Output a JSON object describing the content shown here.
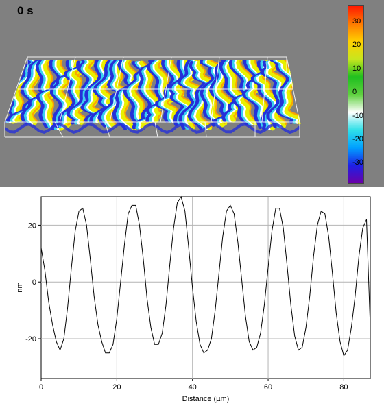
{
  "viewer": {
    "time_label": "0 s",
    "colorbar": {
      "ticks": [
        "30",
        "20",
        "10",
        "0",
        "-10",
        "-20",
        "-30"
      ],
      "range": [
        -38,
        37
      ],
      "stops": [
        "#6a00a8",
        "#1e20e6",
        "#00a0ff",
        "#2fe0e8",
        "#ffffff",
        "#5fd13f",
        "#1fbf1f",
        "#c8e61e",
        "#ffd000",
        "#ff7a00",
        "#ff1a00"
      ]
    },
    "surface_colors": [
      "#e8f000",
      "#2ec82e",
      "#ff9a00",
      "#ffffff",
      "#3ad0f0",
      "#2530d8"
    ]
  },
  "chart_data": {
    "type": "line",
    "xlabel": "Distance (µm)",
    "ylabel": "nm",
    "xlim": [
      0,
      87
    ],
    "ylim": [
      -34,
      30
    ],
    "xticks": [
      0,
      20,
      40,
      60,
      80
    ],
    "yticks": [
      20,
      0,
      -20
    ],
    "grid": true,
    "series": [
      {
        "x": [
          0,
          1,
          2,
          3,
          4,
          5,
          6,
          7,
          8,
          9,
          10,
          11,
          12,
          13,
          14,
          15,
          16,
          17,
          18,
          19,
          20,
          21,
          22,
          23,
          24,
          25,
          26,
          27,
          28,
          29,
          30,
          31,
          32,
          33,
          34,
          35,
          36,
          37,
          38,
          39,
          40,
          41,
          42,
          43,
          44,
          45,
          46,
          47,
          48,
          49,
          50,
          51,
          52,
          53,
          54,
          55,
          56,
          57,
          58,
          59,
          60,
          61,
          62,
          63,
          64,
          65,
          66,
          67,
          68,
          69,
          70,
          71,
          72,
          73,
          74,
          75,
          76,
          77,
          78,
          79,
          80,
          81,
          82,
          83,
          84,
          85,
          86,
          87
        ],
        "y": [
          12,
          4,
          -7,
          -15,
          -21,
          -24,
          -20,
          -9,
          5,
          18,
          25,
          26,
          20,
          8,
          -5,
          -15,
          -21,
          -25,
          -25,
          -22,
          -13,
          0,
          13,
          24,
          27,
          27,
          20,
          8,
          -6,
          -16,
          -22,
          -22,
          -18,
          -8,
          6,
          19,
          28,
          30,
          25,
          12,
          -2,
          -14,
          -22,
          -25,
          -24,
          -20,
          -10,
          3,
          16,
          25,
          27,
          24,
          14,
          1,
          -12,
          -21,
          -24,
          -23,
          -18,
          -8,
          5,
          18,
          26,
          26,
          19,
          6,
          -8,
          -19,
          -24,
          -23,
          -16,
          -5,
          9,
          20,
          25,
          24,
          16,
          3,
          -11,
          -21,
          -26,
          -24,
          -16,
          -5,
          9,
          19,
          22,
          -16
        ]
      }
    ]
  }
}
